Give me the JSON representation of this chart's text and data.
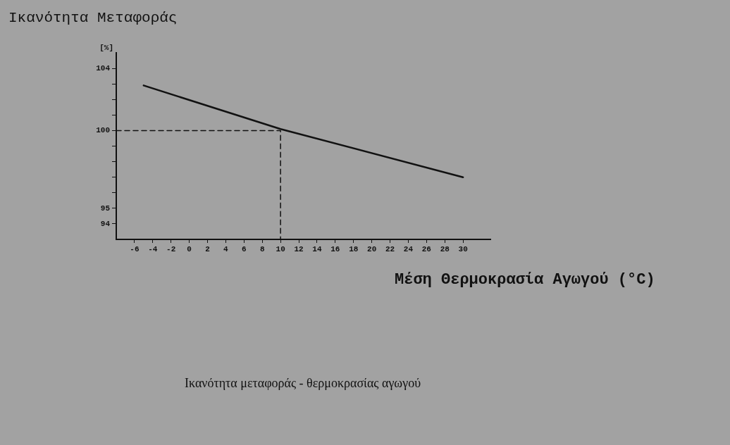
{
  "chart_data": {
    "type": "line",
    "ylabel": "Ικανότητα Μεταφοράς",
    "xlabel": "Μέση Θερμοκρασία Αγωγού (°C)",
    "annotations": [
      "[%]",
      "Ικανότητα μεταφοράς - θερμοκρασίας αγωγού"
    ],
    "series": [
      {
        "color": "#111111",
        "line_style": "solid",
        "x": [
          -5,
          10,
          30
        ],
        "values": [
          102.9,
          100.1,
          97.0
        ]
      },
      {
        "color": "#111111",
        "line_style": "dashed",
        "x": [
          -8,
          10,
          10
        ],
        "values": [
          100,
          100,
          93
        ]
      }
    ],
    "xlim": [
      -8,
      33
    ],
    "xticks": [
      -6,
      -4,
      -2,
      0,
      2,
      4,
      6,
      8,
      10,
      12,
      14,
      16,
      18,
      20,
      22,
      24,
      26,
      28,
      30
    ],
    "ylim": [
      93,
      105
    ],
    "yticks": [
      94,
      95,
      {
        "value": 96,
        "label": null
      },
      {
        "value": 97,
        "label": null
      },
      {
        "value": 98,
        "label": null
      },
      {
        "value": 99,
        "label": null
      },
      100,
      {
        "value": 101,
        "label": null
      },
      {
        "value": 102,
        "label": null
      },
      {
        "value": 103,
        "label": null
      },
      104
    ],
    "grid": false,
    "legend": false,
    "marker": "none"
  }
}
